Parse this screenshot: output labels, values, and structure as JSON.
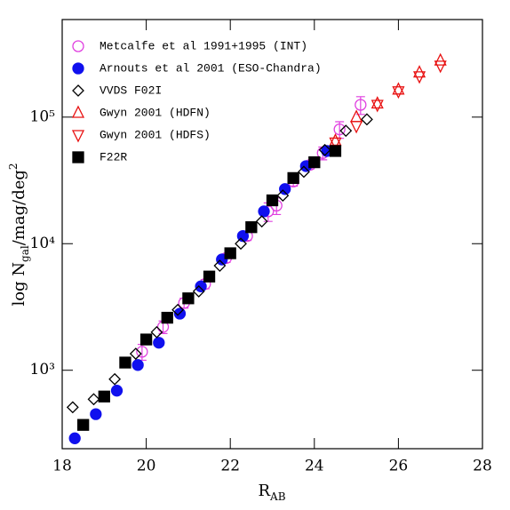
{
  "chart_data": {
    "type": "scatter",
    "xlabel": {
      "main": "R",
      "sub": "AB"
    },
    "ylabel": {
      "main": "log N",
      "sub": "gal",
      "rest": "/mag/deg",
      "sup": "2"
    },
    "log_y": true,
    "xlim": [
      18,
      28
    ],
    "ylim": [
      240,
      590000
    ],
    "xticks": [
      18,
      20,
      22,
      24,
      26,
      28
    ],
    "yticks": [
      {
        "value": 1000,
        "label": "10³"
      },
      {
        "value": 10000,
        "label": "10⁴"
      },
      {
        "value": 100000,
        "label": "10⁵"
      }
    ],
    "legend": "upper left",
    "series": [
      {
        "name": "Metcalfe et al 1991+1995 (INT)",
        "color": "#e040e0",
        "marker": "circle-open",
        "x": [
          19.9,
          20.4,
          20.9,
          21.4,
          21.9,
          22.4,
          22.9,
          23.1,
          23.5,
          23.9,
          24.2,
          24.6,
          25.1
        ],
        "values": [
          1400,
          2200,
          3400,
          4800,
          7700,
          11500,
          18000,
          20000,
          31000,
          42000,
          52000,
          80000,
          125000
        ],
        "errors": [
          200,
          250,
          300,
          400,
          600,
          900,
          3000,
          3000,
          2500,
          3000,
          6000,
          12000,
          20000
        ]
      },
      {
        "name": "Arnouts et al 2001 (ESO-Chandra)",
        "color": "#1010ee",
        "marker": "circle-filled",
        "x": [
          18.3,
          18.8,
          19.3,
          19.8,
          20.3,
          20.8,
          21.3,
          21.8,
          22.3,
          22.8,
          23.3,
          23.8,
          24.3
        ],
        "values": [
          290,
          450,
          690,
          1100,
          1650,
          2800,
          4600,
          7500,
          11500,
          18000,
          27000,
          41000,
          54000
        ]
      },
      {
        "name": "VVDS F02I",
        "color": "#000000",
        "marker": "diamond-open",
        "x": [
          18.25,
          18.75,
          19.25,
          19.75,
          20.25,
          20.75,
          21.25,
          21.75,
          22.25,
          22.75,
          23.25,
          23.75,
          24.25,
          24.75,
          25.25
        ],
        "values": [
          510,
          590,
          850,
          1350,
          2000,
          3000,
          4200,
          6700,
          10000,
          15000,
          24000,
          37000,
          55000,
          78000,
          96000
        ]
      },
      {
        "name": "Gwyn 2001 (HDFN)",
        "color": "#e81010",
        "marker": "triangle-up-open",
        "x": [
          24.5,
          25.0,
          25.5,
          26.0,
          26.5,
          27.0
        ],
        "values": [
          65000,
          100000,
          128000,
          165000,
          225000,
          280000
        ]
      },
      {
        "name": "Gwyn 2001 (HDFS)",
        "color": "#e81010",
        "marker": "triangle-down-open",
        "x": [
          24.5,
          25.0,
          25.5,
          26.0,
          26.5,
          27.0
        ],
        "values": [
          63000,
          85000,
          125000,
          160000,
          210000,
          255000
        ]
      },
      {
        "name": "F22R",
        "color": "#000000",
        "marker": "square-filled",
        "x": [
          18.5,
          19.0,
          19.5,
          20.0,
          20.5,
          21.0,
          21.5,
          22.0,
          22.5,
          23.0,
          23.5,
          24.0,
          24.5
        ],
        "values": [
          370,
          620,
          1150,
          1750,
          2600,
          3700,
          5500,
          8400,
          13500,
          22000,
          33000,
          44000,
          54000
        ]
      }
    ]
  }
}
